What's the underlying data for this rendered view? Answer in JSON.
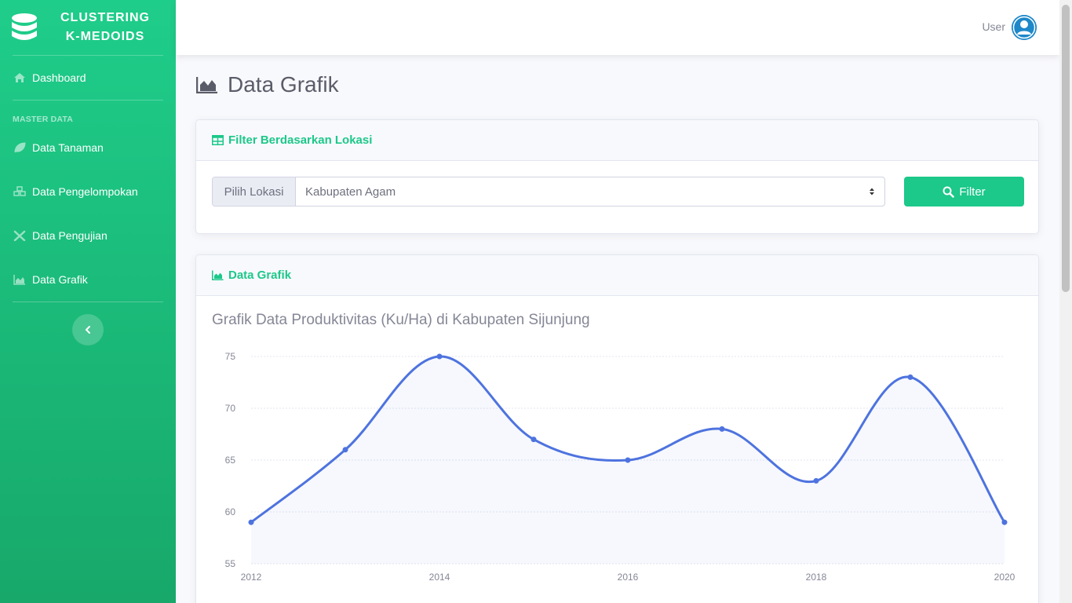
{
  "brand": {
    "line1": "CLUSTERING",
    "line2": "K-MEDOIDS"
  },
  "sidebar": {
    "dashboard": "Dashboard",
    "section_title": "MASTER DATA",
    "items": [
      {
        "label": "Data Tanaman",
        "icon": "leaf-icon"
      },
      {
        "label": "Data Pengelompokan",
        "icon": "cubes-icon"
      },
      {
        "label": "Data Pengujian",
        "icon": "tools-icon"
      },
      {
        "label": "Data Grafik",
        "icon": "chart-area-icon"
      }
    ]
  },
  "topbar": {
    "user_label": "User"
  },
  "page": {
    "title": "Data Grafik"
  },
  "filter_card": {
    "header": "Filter Berdasarkan Lokasi",
    "input_label": "Pilih Lokasi",
    "selected_location": "Kabupaten Agam",
    "button_label": "Filter"
  },
  "chart_card": {
    "header": "Data Grafik",
    "title": "Grafik Data Produktivitas (Ku/Ha) di Kabupaten Sijunjung"
  },
  "colors": {
    "primary_green": "#1cc88a",
    "line_blue": "#4e73df"
  },
  "chart_data": {
    "type": "area",
    "x": [
      "2012",
      "2013",
      "2014",
      "2015",
      "2016",
      "2017",
      "2018",
      "2019",
      "2020"
    ],
    "x_tick_labels": [
      "2012",
      "2014",
      "2016",
      "2018",
      "2020"
    ],
    "values": [
      59,
      66,
      75,
      67,
      65,
      68,
      63,
      73,
      59
    ],
    "y_ticks": [
      55,
      60,
      65,
      70,
      75
    ],
    "ylim": [
      55,
      75
    ],
    "grid": true,
    "legend": false
  }
}
